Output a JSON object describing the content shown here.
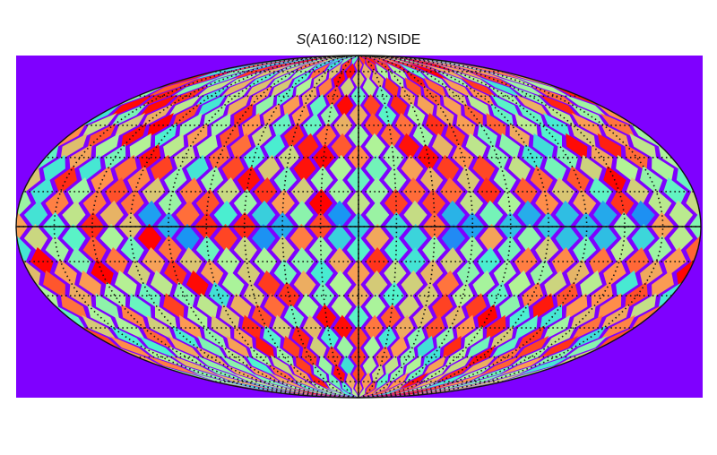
{
  "chart_data": {
    "type": "heatmap",
    "projection": "mollweide",
    "title_symbol": "S",
    "title_rest": "(A160:I12) NSIDE",
    "background_color": "#7f00ff",
    "colormap": "rainbow",
    "colormap_stops": [
      "#8000ff",
      "#1996f3",
      "#4df3ce",
      "#b2f396",
      "#ff964f",
      "#ff0000"
    ],
    "grid": true,
    "graticule_style": "dotted",
    "meridian_step_deg": 20,
    "parallel_step_deg": 15,
    "map": {
      "nside_cols": 36,
      "nside_rows": 18,
      "equatorial_band_low_values": true,
      "value_range": [
        0.0,
        1.0
      ]
    }
  }
}
